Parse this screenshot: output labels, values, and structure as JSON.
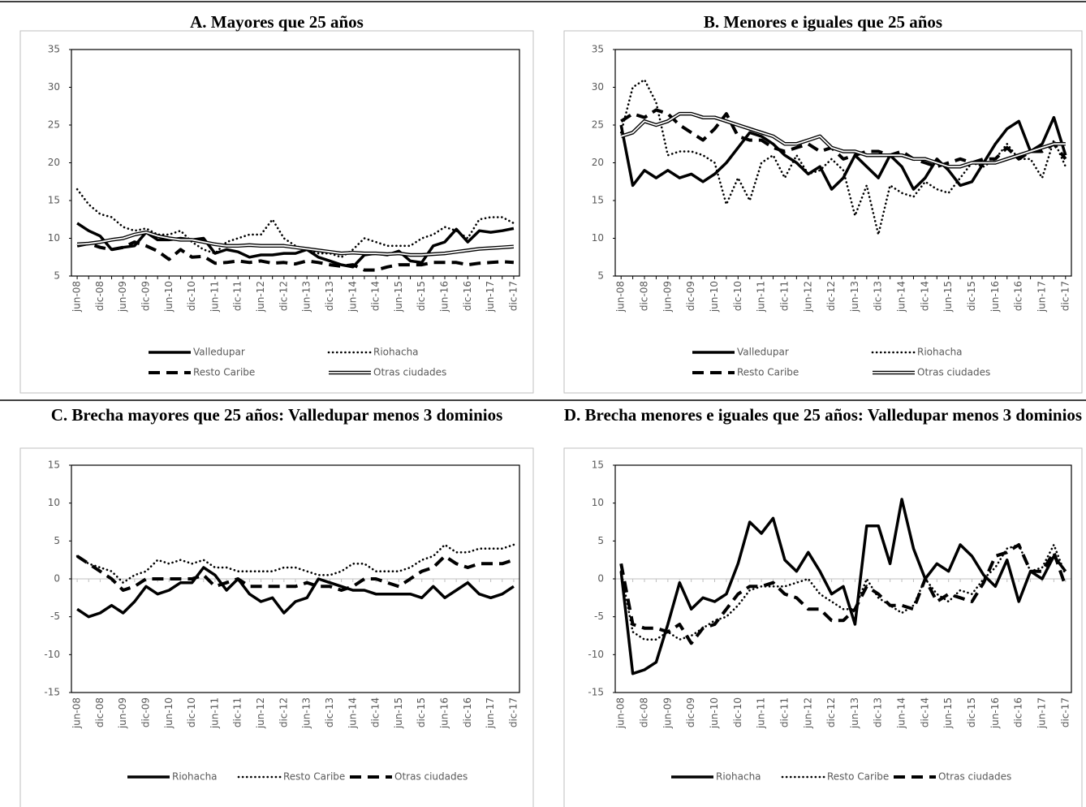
{
  "chart_data": [
    {
      "type": "line",
      "title": "A. Mayores que 25 años",
      "categories": [
        "jun-08",
        null,
        "dic-08",
        null,
        "jun-09",
        null,
        "dic-09",
        null,
        "jun-10",
        null,
        "dic-10",
        null,
        "jun-11",
        null,
        "dic-11",
        null,
        "jun-12",
        null,
        "dic-12",
        null,
        "jun-13",
        null,
        "dic-13",
        null,
        "jun-14",
        null,
        "dic-14",
        null,
        "jun-15",
        null,
        "dic-15",
        null,
        "jun-16",
        null,
        "dic-16",
        null,
        "jun-17",
        null,
        "dic-17"
      ],
      "ylim": [
        5,
        35
      ],
      "yticks": [
        5,
        10,
        15,
        20,
        25,
        30,
        35
      ],
      "series": [
        {
          "name": "Valledupar",
          "color": "#000000",
          "style": "solid",
          "values": [
            12,
            11,
            10.3,
            8.5,
            8.8,
            9,
            10.8,
            9.8,
            9.8,
            10,
            9.8,
            10,
            8,
            8.5,
            8.2,
            7.5,
            7.8,
            7.8,
            8,
            8,
            8.5,
            7.5,
            7,
            6.5,
            6.2,
            7.8,
            8,
            7.8,
            8.3,
            7,
            6.8,
            9,
            9.5,
            11.2,
            9.5,
            11,
            10.8,
            11,
            11.3
          ]
        },
        {
          "name": "Riohacha",
          "color": "#000000",
          "style": "dotted",
          "values": [
            16.5,
            14.5,
            13.2,
            12.8,
            11.5,
            11,
            11.3,
            10.5,
            10.5,
            11,
            9.5,
            8.5,
            8,
            9.5,
            10,
            10.5,
            10.5,
            12.5,
            10,
            9,
            8.5,
            8,
            8,
            7.5,
            8.5,
            10,
            9.5,
            9,
            9,
            9,
            10,
            10.5,
            11.5,
            11,
            10,
            12.5,
            12.8,
            12.8,
            12
          ]
        },
        {
          "name": "Resto Caribe",
          "color": "#000000",
          "style": "dashed",
          "values": [
            9,
            9.3,
            8.8,
            8.5,
            8.8,
            9.5,
            9,
            8.3,
            7.2,
            8.5,
            7.5,
            7.6,
            6.7,
            6.8,
            7,
            6.8,
            7,
            6.7,
            6.8,
            6.6,
            7,
            6.8,
            6.5,
            6.3,
            6.5,
            5.8,
            5.8,
            6.2,
            6.5,
            6.5,
            6.5,
            6.8,
            6.8,
            6.8,
            6.5,
            6.7,
            6.8,
            6.9,
            6.8
          ]
        },
        {
          "name": "Otras ciudades",
          "color": "#000000",
          "style": "double",
          "values": [
            9.2,
            9.3,
            9.5,
            9.8,
            10,
            10.5,
            10.8,
            10.3,
            10,
            9.8,
            9.8,
            9.5,
            9.2,
            9,
            9,
            9.1,
            9,
            9,
            9,
            8.8,
            8.6,
            8.4,
            8.2,
            8,
            8.1,
            8,
            8,
            7.9,
            8,
            7.8,
            7.8,
            7.9,
            8,
            8.2,
            8.4,
            8.6,
            8.7,
            8.8,
            8.9
          ]
        }
      ]
    },
    {
      "type": "line",
      "title": "B. Menores e iguales que 25 años",
      "categories": [
        "jun-08",
        null,
        "dic-08",
        null,
        "jun-09",
        null,
        "dic-09",
        null,
        "jun-10",
        null,
        "dic-10",
        null,
        "jun-11",
        null,
        "dic-11",
        null,
        "jun-12",
        null,
        "dic-12",
        null,
        "jun-13",
        null,
        "dic-13",
        null,
        "jun-14",
        null,
        "dic-14",
        null,
        "jun-15",
        null,
        "dic-15",
        null,
        "jun-16",
        null,
        "dic-16",
        null,
        "jun-17",
        null,
        "dic-17"
      ],
      "ylim": [
        5,
        35
      ],
      "yticks": [
        5,
        10,
        15,
        20,
        25,
        30,
        35
      ],
      "series": [
        {
          "name": "Valledupar",
          "color": "#000000",
          "style": "solid",
          "values": [
            25,
            17,
            19,
            18,
            19,
            18,
            18.5,
            17.5,
            18.5,
            20,
            22,
            24,
            23.5,
            22.5,
            21,
            20,
            18.5,
            19.5,
            16.5,
            18,
            21,
            19.5,
            18,
            21,
            19.5,
            16.5,
            18,
            20.5,
            19,
            17,
            17.5,
            20,
            22.5,
            24.5,
            25.5,
            21.5,
            22.5,
            26,
            21
          ]
        },
        {
          "name": "Riohacha",
          "color": "#000000",
          "style": "dotted",
          "values": [
            24,
            30,
            31,
            28,
            21,
            21.5,
            21.5,
            21,
            20,
            14.5,
            18,
            15,
            20,
            21,
            18,
            21,
            18.5,
            19,
            20.5,
            19,
            13,
            17,
            10.5,
            17,
            16,
            15.5,
            17.5,
            16.5,
            16,
            18,
            20,
            19.5,
            20.5,
            22.5,
            20.5,
            20.5,
            18,
            23,
            19.5
          ]
        },
        {
          "name": "Resto Caribe",
          "color": "#000000",
          "style": "dashed",
          "values": [
            25.5,
            26.5,
            26,
            27,
            26.5,
            25,
            24,
            23,
            24.5,
            26.5,
            23.5,
            23,
            23,
            22,
            21.5,
            22,
            22.5,
            21.5,
            22,
            20.5,
            21,
            21.5,
            21.5,
            21,
            21.5,
            20.5,
            20,
            19.5,
            20,
            20.5,
            20,
            20.5,
            20.5,
            22,
            20.5,
            21.5,
            21.5,
            22.5,
            20.5
          ]
        },
        {
          "name": "Otras ciudades",
          "color": "#000000",
          "style": "double",
          "values": [
            23.5,
            24,
            25.5,
            25,
            25.5,
            26.5,
            26.5,
            26,
            26,
            25.5,
            25,
            24.5,
            24,
            23.5,
            22.5,
            22.5,
            23,
            23.5,
            22,
            21.5,
            21.5,
            21,
            21,
            21,
            21,
            20.5,
            20.5,
            20,
            19.5,
            19.5,
            20,
            20,
            20,
            20.5,
            21,
            21.5,
            22,
            22.5,
            22.5
          ]
        }
      ]
    },
    {
      "type": "line",
      "title": "C. Brecha mayores que 25 años: Valledupar menos 3 dominios",
      "categories": [
        "jun-08",
        null,
        "dic-08",
        null,
        "jun-09",
        null,
        "dic-09",
        null,
        "jun-10",
        null,
        "dic-10",
        null,
        "jun-11",
        null,
        "dic-11",
        null,
        "jun-12",
        null,
        "dic-12",
        null,
        "jun-13",
        null,
        "dic-13",
        null,
        "jun-14",
        null,
        "dic-14",
        null,
        "jun-15",
        null,
        "dic-15",
        null,
        "jun-16",
        null,
        "dic-16",
        null,
        "jun-17",
        null,
        "dic-17"
      ],
      "ylim": [
        -15,
        15
      ],
      "yticks": [
        -15,
        -10,
        -5,
        0,
        5,
        10,
        15
      ],
      "series": [
        {
          "name": "Riohacha",
          "color": "#000000",
          "style": "solid",
          "values": [
            -4,
            -5,
            -4.5,
            -3.5,
            -4.5,
            -3,
            -1,
            -2,
            -1.5,
            -0.5,
            -0.5,
            1.5,
            0.5,
            -1.5,
            0,
            -2,
            -3,
            -2.5,
            -4.5,
            -3,
            -2.5,
            0,
            -0.5,
            -1,
            -1.5,
            -1.5,
            -2,
            -2,
            -2,
            -2,
            -2.5,
            -1,
            -2.5,
            -1.5,
            -0.5,
            -2,
            -2.5,
            -2,
            -1
          ]
        },
        {
          "name": "Resto Caribe",
          "color": "#000000",
          "style": "dotted",
          "values": [
            3,
            2,
            1.5,
            1,
            -0.5,
            0.5,
            1,
            2.5,
            2,
            2.5,
            2,
            2.5,
            1.5,
            1.5,
            1,
            1,
            1,
            1,
            1.5,
            1.5,
            1,
            0.5,
            0.5,
            1,
            2,
            2,
            1,
            1,
            1,
            1.5,
            2.5,
            3,
            4.5,
            3.5,
            3.5,
            4,
            4,
            4,
            4.5
          ]
        },
        {
          "name": "Otras ciudades",
          "color": "#000000",
          "style": "dashed",
          "values": [
            3,
            2,
            1,
            0,
            -1.5,
            -1,
            0,
            0,
            0,
            0,
            0,
            0.5,
            -1,
            -0.5,
            0,
            -1,
            -1,
            -1,
            -1,
            -1,
            -0.5,
            -1,
            -1,
            -1.5,
            -1,
            0,
            0,
            -0.5,
            -1,
            0,
            1,
            1.5,
            3,
            2,
            1.5,
            2,
            2,
            2,
            2.5
          ]
        }
      ]
    },
    {
      "type": "line",
      "title": "D. Brecha menores e iguales que 25 años: Valledupar menos 3 dominios",
      "categories": [
        "jun-08",
        null,
        "dic-08",
        null,
        "jun-09",
        null,
        "dic-09",
        null,
        "jun-10",
        null,
        "dic-10",
        null,
        "jun-11",
        null,
        "dic-11",
        null,
        "jun-12",
        null,
        "dic-12",
        null,
        "jun-13",
        null,
        "dic-13",
        null,
        "jun-14",
        null,
        "dic-14",
        null,
        "jun-15",
        null,
        "dic-15",
        null,
        "jun-16",
        null,
        "dic-16",
        null,
        "jun-17",
        null,
        "dic-17"
      ],
      "ylim": [
        -15,
        15
      ],
      "yticks": [
        -15,
        -10,
        -5,
        0,
        5,
        10,
        15
      ],
      "series": [
        {
          "name": "Riohacha",
          "color": "#000000",
          "style": "solid",
          "values": [
            1,
            -12.5,
            -12,
            -11,
            -6,
            -0.5,
            -4,
            -2.5,
            -3,
            -2,
            2,
            7.5,
            6,
            8,
            2.5,
            1,
            3.5,
            1,
            -2,
            -1,
            -6,
            7,
            7,
            2,
            10.5,
            4,
            0,
            2,
            1,
            4.5,
            3,
            0.5,
            -1,
            2.5,
            -3,
            1,
            0,
            3,
            1
          ]
        },
        {
          "name": "Resto Caribe",
          "color": "#000000",
          "style": "dotted",
          "values": [
            1,
            -7,
            -8,
            -8,
            -7,
            -8,
            -7.5,
            -6.5,
            -5.5,
            -5,
            -3.5,
            -1.5,
            -1,
            -1,
            -1,
            -0.5,
            0,
            -2,
            -3,
            -4,
            -4,
            0,
            -2.5,
            -3.5,
            -4.5,
            -3.5,
            0,
            -2,
            -3,
            -1.5,
            -2,
            0,
            1.5,
            4,
            4.5,
            1,
            1.5,
            4.5,
            0.5
          ]
        },
        {
          "name": "Otras ciudades",
          "color": "#000000",
          "style": "dashed",
          "values": [
            2,
            -6,
            -6.5,
            -6.5,
            -7,
            -6,
            -8.5,
            -6.5,
            -6,
            -4,
            -2,
            -1,
            -1,
            -0.5,
            -2,
            -2.5,
            -4,
            -4,
            -5.5,
            -5.5,
            -4,
            -1,
            -2,
            -3.5,
            -3.5,
            -4,
            0,
            -3,
            -2,
            -2.5,
            -3,
            -0.5,
            3,
            3.5,
            4.5,
            1,
            1,
            3.5,
            -1
          ]
        }
      ]
    }
  ]
}
